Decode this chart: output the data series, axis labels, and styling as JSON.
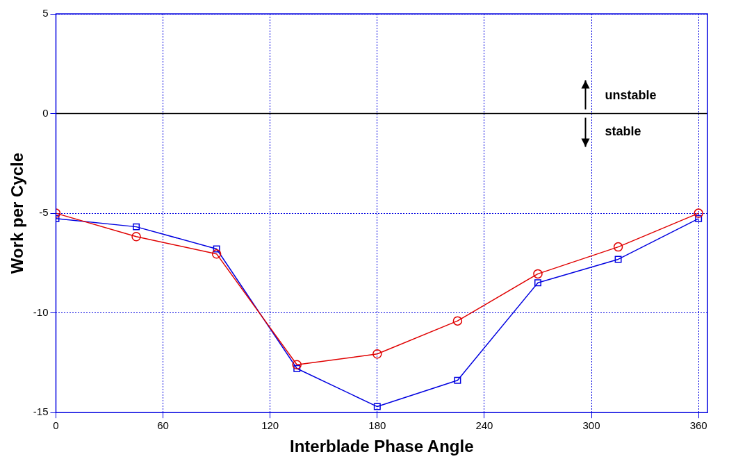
{
  "chart_data": {
    "type": "line",
    "xlabel": "Interblade Phase Angle",
    "ylabel": "Work per Cycle",
    "x": [
      0,
      45,
      90,
      135,
      180,
      225,
      270,
      315,
      360
    ],
    "series": [
      {
        "color": "#e00000",
        "marker": "circle",
        "values": [
          -5,
          -6.17,
          -7.04,
          -12.6,
          -12.06,
          -10.4,
          -8.04,
          -6.69,
          -5
        ]
      },
      {
        "color": "#0000e0",
        "marker": "square",
        "values": [
          -5.27,
          -5.68,
          -6.79,
          -12.79,
          -14.7,
          -13.38,
          -8.49,
          -7.31,
          -5.27
        ]
      }
    ],
    "xlim": [
      0,
      365
    ],
    "xticks": [
      0,
      60,
      120,
      180,
      240,
      300,
      360
    ],
    "ylim": [
      -15,
      5
    ],
    "yticks": [
      5,
      0,
      -5,
      -10,
      -15
    ],
    "grid": true,
    "line_style": "solid",
    "ref_lines": [
      {
        "axis": "y",
        "value": 0,
        "color": "#000000"
      }
    ],
    "annotations": [
      "unstable",
      "stable"
    ]
  }
}
